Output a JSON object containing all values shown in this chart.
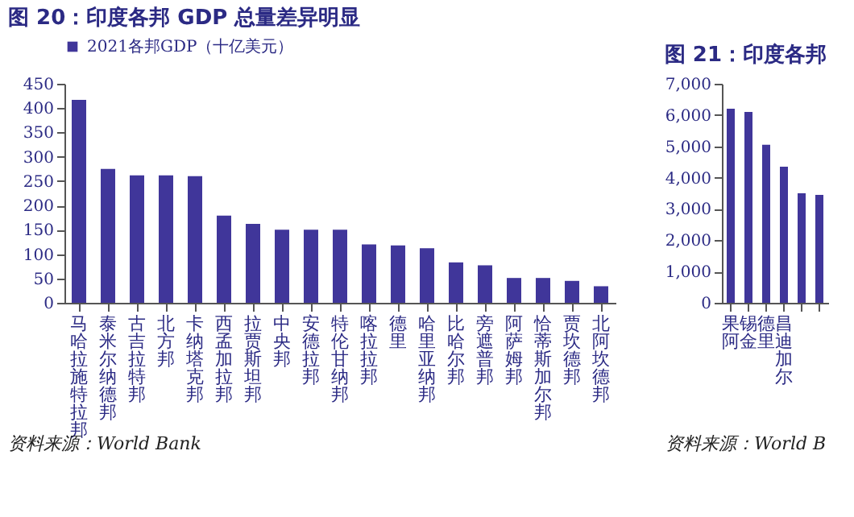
{
  "chart_data": [
    {
      "type": "bar",
      "title": "图 20：印度各邦 GDP 总量差异明显",
      "categories": [
        "马哈拉施特拉邦",
        "泰米尔纳德邦",
        "古吉拉特邦",
        "北方邦",
        "卡纳塔克邦",
        "西孟加拉邦",
        "拉贾斯坦邦",
        "中央邦",
        "安德拉邦",
        "特伦甘纳邦",
        "喀拉拉邦",
        "德里",
        "哈里亚纳邦",
        "比哈尔邦",
        "旁遮普邦",
        "阿萨姆邦",
        "恰蒂斯加尔邦",
        "贾坎德邦",
        "北阿坎德邦"
      ],
      "series": [
        {
          "name": "2021各邦GDP（十亿美元）",
          "color": "#40369a",
          "values": [
            417,
            275,
            262,
            262,
            260,
            179,
            162,
            150,
            150,
            150,
            120,
            118,
            112,
            83,
            77,
            51,
            51,
            45,
            34
          ]
        }
      ],
      "ylim": [
        0,
        450
      ],
      "yticks": [
        0,
        50,
        100,
        150,
        200,
        250,
        300,
        350,
        400,
        450
      ],
      "legend": "top",
      "annotations": [
        "资料来源：World Bank"
      ]
    },
    {
      "type": "bar",
      "title": "图 21：印度各邦",
      "categories": [
        "果阿",
        "锡金",
        "德里",
        "昌迪加尔",
        null,
        null
      ],
      "series": [
        {
          "color": "#40369a",
          "values": [
            6200,
            6100,
            5050,
            4350,
            3500,
            3450
          ]
        }
      ],
      "ylim": [
        0,
        7000
      ],
      "yticks": [
        0,
        {
          "value": 1000,
          "label": "1,000"
        },
        {
          "value": 2000,
          "label": "2,000"
        },
        {
          "value": 3000,
          "label": "3,000"
        },
        {
          "value": 4000,
          "label": "4,000"
        },
        {
          "value": 5000,
          "label": "5,000"
        },
        {
          "value": 6000,
          "label": "6,000"
        },
        {
          "value": 7000,
          "label": "7,000"
        }
      ],
      "annotations": [
        "资料来源：World B"
      ]
    }
  ]
}
